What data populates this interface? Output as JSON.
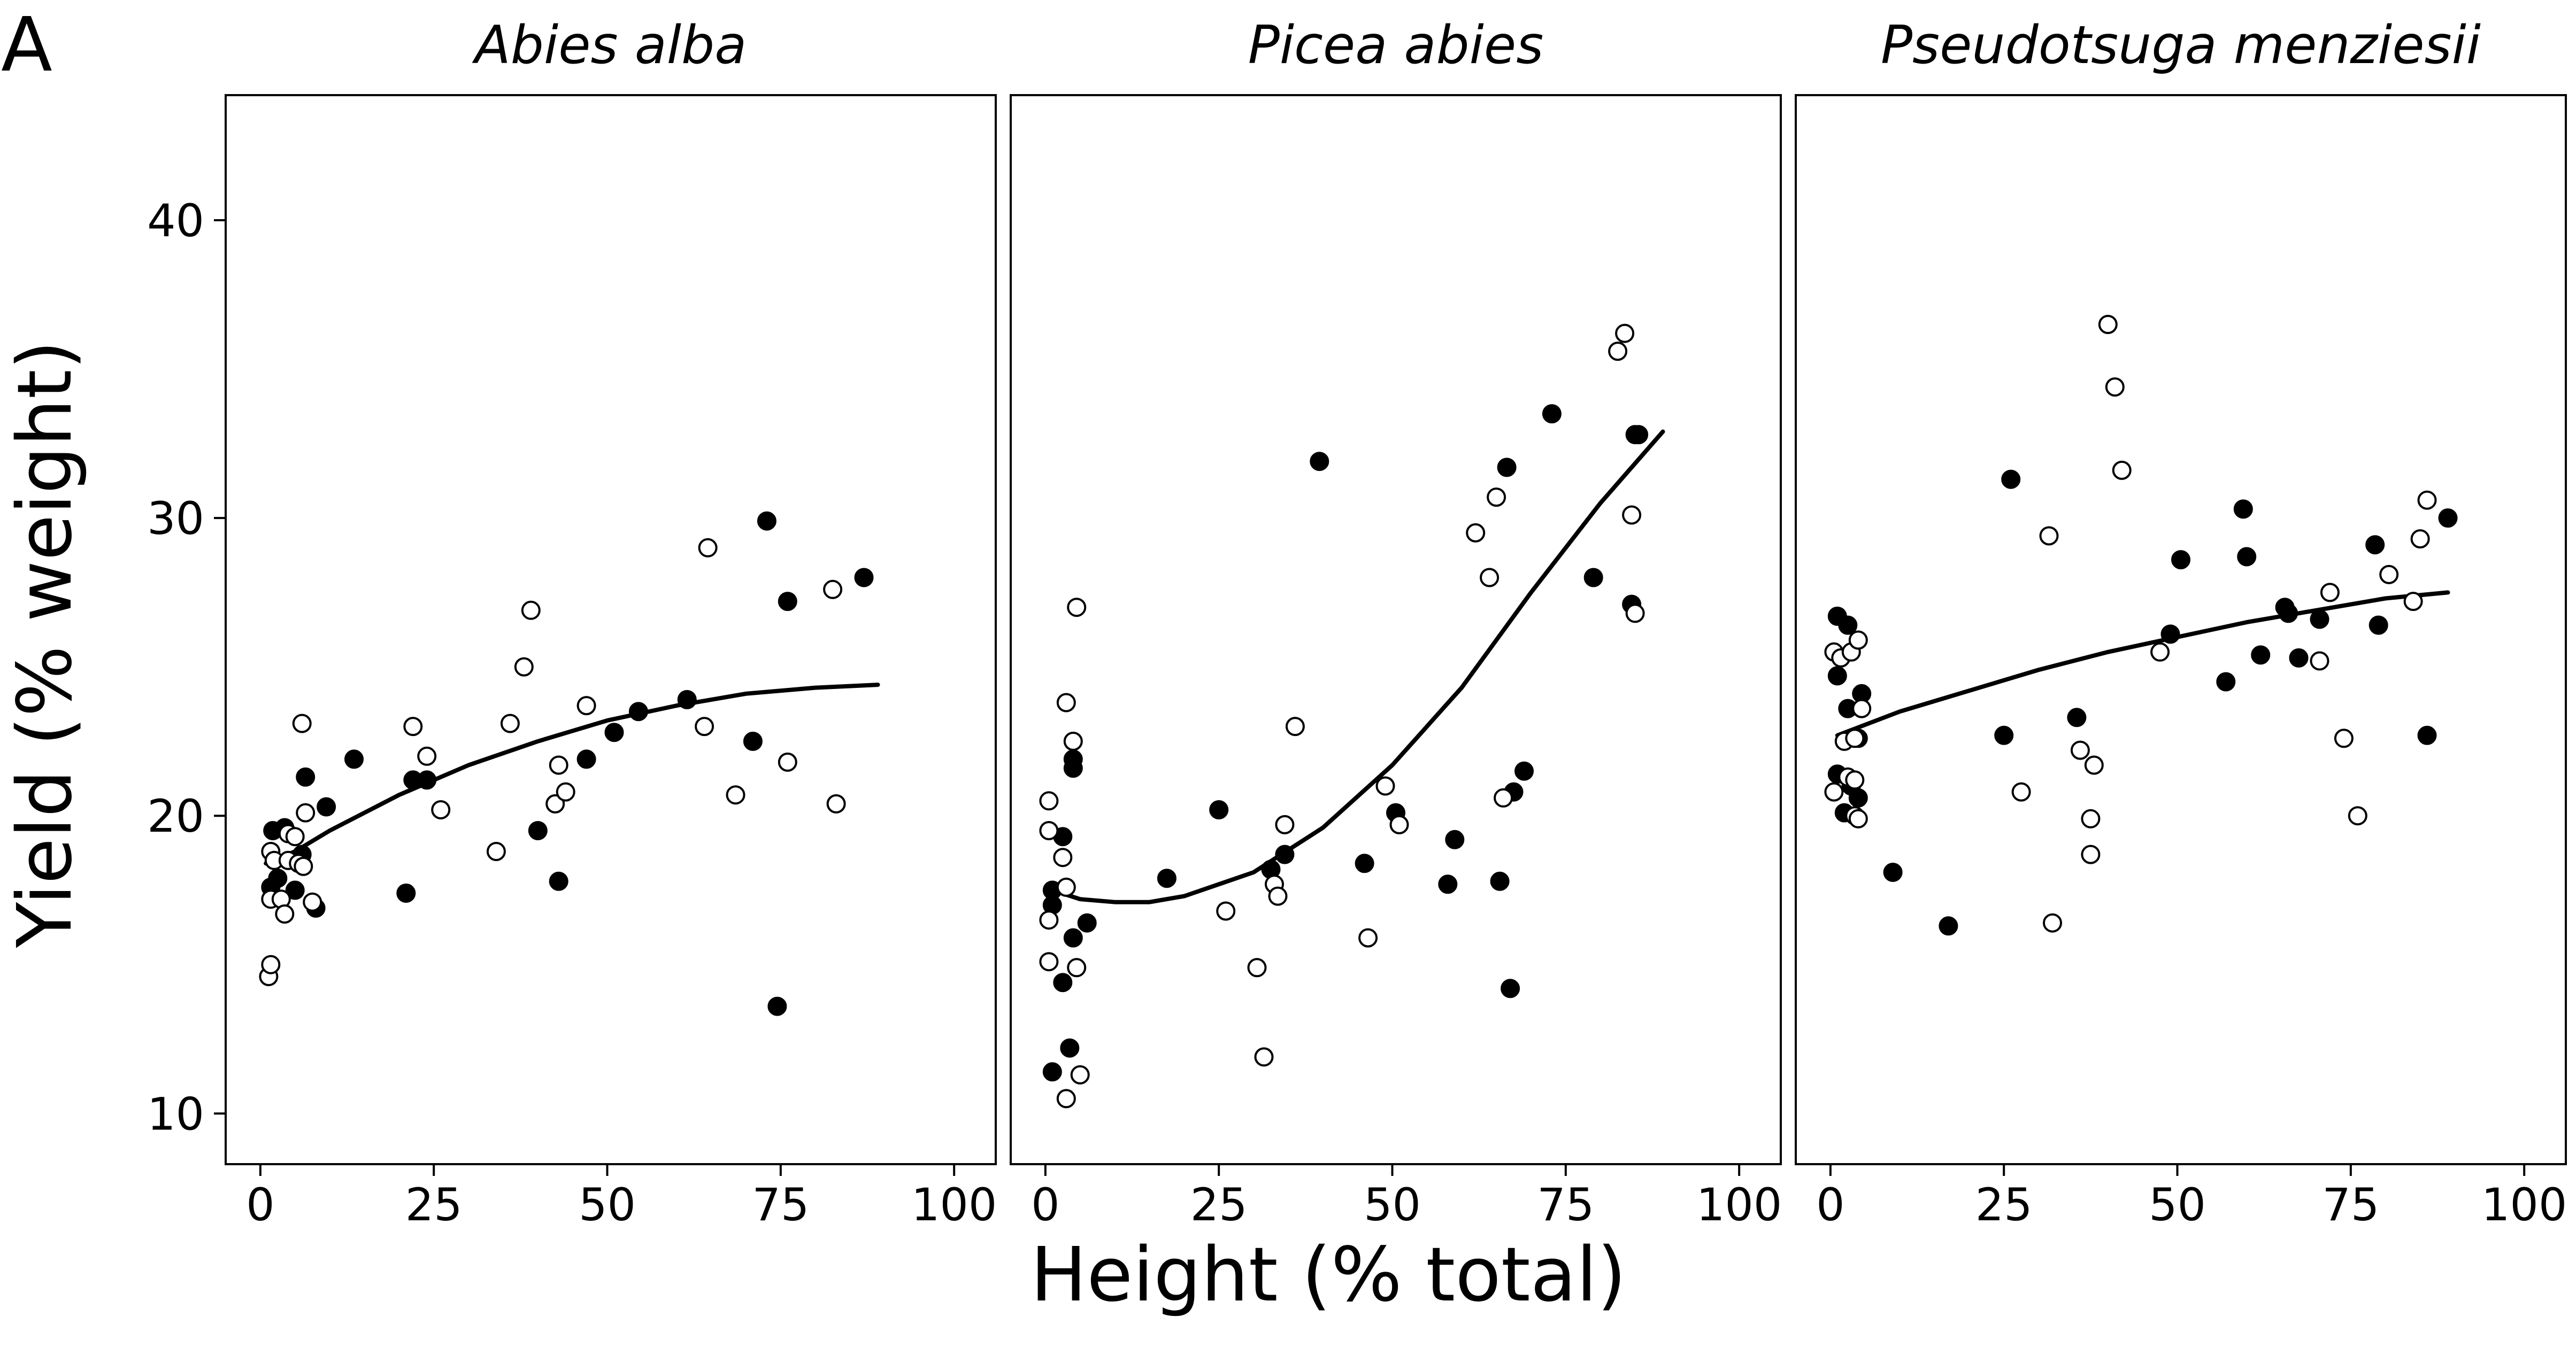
{
  "figure": {
    "panel_label": "A",
    "xlabel": "Height (% total)",
    "ylabel": "Yield (% weight)"
  },
  "chart_data": [
    {
      "type": "scatter",
      "title": "Abies alba",
      "xlim": [
        -5,
        106
      ],
      "ylim": [
        8.3,
        44.2
      ],
      "xticks": [
        0,
        25,
        50,
        75,
        100
      ],
      "yticks": [
        10,
        20,
        30,
        40
      ],
      "xtick_labels": [
        "0",
        "25",
        "50",
        "75",
        "100"
      ],
      "ytick_labels": [
        "10",
        "20",
        "30",
        "40"
      ],
      "marker_styles": {
        "filled": "#000000",
        "open": "#ffffff"
      },
      "series": [
        {
          "style": "filled",
          "points": [
            [
              1.5,
              17.6
            ],
            [
              2.5,
              17.9
            ],
            [
              1.8,
              19.5
            ],
            [
              3.5,
              19.6
            ],
            [
              5,
              17.5
            ],
            [
              6,
              18.7
            ],
            [
              6.5,
              21.3
            ],
            [
              8,
              16.9
            ],
            [
              9.5,
              20.3
            ],
            [
              13.5,
              21.9
            ],
            [
              21,
              17.4
            ],
            [
              22,
              21.2
            ],
            [
              24,
              21.2
            ],
            [
              40,
              19.5
            ],
            [
              43,
              17.8
            ],
            [
              47,
              21.9
            ],
            [
              51,
              22.8
            ],
            [
              54.5,
              23.5
            ],
            [
              61.5,
              23.9
            ],
            [
              71,
              22.5
            ],
            [
              73,
              29.9
            ],
            [
              74.5,
              13.6
            ],
            [
              76,
              27.2
            ],
            [
              87,
              28.0
            ]
          ]
        },
        {
          "style": "open",
          "points": [
            [
              1.2,
              14.6
            ],
            [
              1.5,
              15.0
            ],
            [
              1.5,
              17.2
            ],
            [
              1.5,
              18.8
            ],
            [
              2,
              18.5
            ],
            [
              3,
              17.2
            ],
            [
              3.5,
              16.7
            ],
            [
              4,
              18.5
            ],
            [
              4,
              19.4
            ],
            [
              5,
              19.3
            ],
            [
              5.5,
              18.4
            ],
            [
              6.2,
              18.3
            ],
            [
              6.5,
              20.1
            ],
            [
              6,
              23.1
            ],
            [
              7.5,
              17.1
            ],
            [
              22,
              23.0
            ],
            [
              24,
              22.0
            ],
            [
              26,
              20.2
            ],
            [
              34,
              18.8
            ],
            [
              36,
              23.1
            ],
            [
              38,
              25.0
            ],
            [
              39,
              26.9
            ],
            [
              42.5,
              20.4
            ],
            [
              43,
              21.7
            ],
            [
              44,
              20.8
            ],
            [
              47,
              23.7
            ],
            [
              64,
              23.0
            ],
            [
              64.5,
              29.0
            ],
            [
              68.5,
              20.7
            ],
            [
              76,
              21.8
            ],
            [
              82.5,
              27.6
            ],
            [
              83,
              20.4
            ]
          ]
        }
      ],
      "fit": [
        [
          0.8,
          18.4
        ],
        [
          5,
          18.8
        ],
        [
          10,
          19.5
        ],
        [
          20,
          20.7
        ],
        [
          30,
          21.7
        ],
        [
          40,
          22.5
        ],
        [
          50,
          23.2
        ],
        [
          60,
          23.7
        ],
        [
          70,
          24.1
        ],
        [
          80,
          24.3
        ],
        [
          89,
          24.4
        ]
      ]
    },
    {
      "type": "scatter",
      "title": "Picea abies",
      "xlim": [
        -5,
        106
      ],
      "ylim": [
        8.3,
        44.2
      ],
      "xticks": [
        0,
        25,
        50,
        75,
        100
      ],
      "yticks": [
        10,
        20,
        30,
        40
      ],
      "xtick_labels": [
        "0",
        "25",
        "50",
        "75",
        "100"
      ],
      "ytick_labels": [
        "10",
        "20",
        "30",
        "40"
      ],
      "marker_styles": {
        "filled": "#000000",
        "open": "#ffffff"
      },
      "series": [
        {
          "style": "filled",
          "points": [
            [
              1,
              17.5
            ],
            [
              1,
              17.0
            ],
            [
              1,
              11.4
            ],
            [
              2.5,
              19.3
            ],
            [
              2.5,
              14.4
            ],
            [
              3.5,
              12.2
            ],
            [
              4,
              21.6
            ],
            [
              4,
              21.9
            ],
            [
              4,
              15.9
            ],
            [
              6,
              16.4
            ],
            [
              17.5,
              17.9
            ],
            [
              25,
              20.2
            ],
            [
              32.5,
              18.2
            ],
            [
              34.5,
              18.7
            ],
            [
              39.5,
              31.9
            ],
            [
              46,
              18.4
            ],
            [
              50.5,
              20.1
            ],
            [
              58,
              17.7
            ],
            [
              59,
              19.2
            ],
            [
              65.5,
              17.8
            ],
            [
              66.5,
              31.7
            ],
            [
              67,
              14.2
            ],
            [
              67.5,
              20.8
            ],
            [
              69,
              21.5
            ],
            [
              73,
              33.5
            ],
            [
              79,
              28.0
            ],
            [
              84.5,
              27.1
            ],
            [
              85,
              32.8
            ],
            [
              85.5,
              32.8
            ]
          ]
        },
        {
          "style": "open",
          "points": [
            [
              0.5,
              20.5
            ],
            [
              0.5,
              19.5
            ],
            [
              0.5,
              16.5
            ],
            [
              0.5,
              15.1
            ],
            [
              2.5,
              18.6
            ],
            [
              3,
              17.6
            ],
            [
              3,
              10.5
            ],
            [
              3,
              23.8
            ],
            [
              4,
              22.5
            ],
            [
              4.5,
              27.0
            ],
            [
              4.5,
              14.9
            ],
            [
              5,
              11.3
            ],
            [
              26,
              16.8
            ],
            [
              30.5,
              14.9
            ],
            [
              31.5,
              11.9
            ],
            [
              33,
              17.7
            ],
            [
              33.5,
              17.3
            ],
            [
              34.5,
              19.7
            ],
            [
              36,
              23.0
            ],
            [
              46.5,
              15.9
            ],
            [
              49,
              21.0
            ],
            [
              51,
              19.7
            ],
            [
              62,
              29.5
            ],
            [
              64,
              28.0
            ],
            [
              65,
              30.7
            ],
            [
              66,
              20.6
            ],
            [
              82.5,
              35.6
            ],
            [
              83.5,
              36.2
            ],
            [
              84.5,
              30.1
            ],
            [
              85,
              26.8
            ]
          ]
        }
      ],
      "fit": [
        [
          1,
          17.5
        ],
        [
          5,
          17.2
        ],
        [
          10,
          17.1
        ],
        [
          15,
          17.1
        ],
        [
          20,
          17.3
        ],
        [
          30,
          18.1
        ],
        [
          40,
          19.6
        ],
        [
          50,
          21.7
        ],
        [
          60,
          24.3
        ],
        [
          70,
          27.5
        ],
        [
          80,
          30.5
        ],
        [
          89,
          32.9
        ]
      ]
    },
    {
      "type": "scatter",
      "title": "Pseudotsuga menziesii",
      "xlim": [
        -5,
        106
      ],
      "ylim": [
        8.3,
        44.2
      ],
      "xticks": [
        0,
        25,
        50,
        75,
        100
      ],
      "yticks": [
        10,
        20,
        30,
        40
      ],
      "xtick_labels": [
        "0",
        "25",
        "50",
        "75",
        "100"
      ],
      "ytick_labels": [
        "10",
        "20",
        "30",
        "40"
      ],
      "marker_styles": {
        "filled": "#000000",
        "open": "#ffffff"
      },
      "series": [
        {
          "style": "filled",
          "points": [
            [
              1,
              26.7
            ],
            [
              1,
              24.7
            ],
            [
              1,
              21.4
            ],
            [
              2,
              20.1
            ],
            [
              2.5,
              23.6
            ],
            [
              2.5,
              26.4
            ],
            [
              3,
              21.0
            ],
            [
              4,
              20.6
            ],
            [
              4,
              22.6
            ],
            [
              4.5,
              24.1
            ],
            [
              9,
              18.1
            ],
            [
              17,
              16.3
            ],
            [
              25,
              22.7
            ],
            [
              26,
              31.3
            ],
            [
              35.5,
              23.3
            ],
            [
              49,
              26.1
            ],
            [
              50.5,
              28.6
            ],
            [
              57,
              24.5
            ],
            [
              59.5,
              30.3
            ],
            [
              60,
              28.7
            ],
            [
              62,
              25.4
            ],
            [
              65.5,
              27.0
            ],
            [
              66,
              26.8
            ],
            [
              67.5,
              25.3
            ],
            [
              70.5,
              26.6
            ],
            [
              78.5,
              29.1
            ],
            [
              79,
              26.4
            ],
            [
              86,
              22.7
            ],
            [
              89,
              30.0
            ]
          ]
        },
        {
          "style": "open",
          "points": [
            [
              0.5,
              25.5
            ],
            [
              0.5,
              20.8
            ],
            [
              1.5,
              25.3
            ],
            [
              2,
              22.5
            ],
            [
              2.5,
              21.3
            ],
            [
              3,
              25.5
            ],
            [
              3.5,
              22.6
            ],
            [
              3.5,
              20.0
            ],
            [
              3.5,
              21.2
            ],
            [
              4,
              19.9
            ],
            [
              4,
              25.9
            ],
            [
              4.5,
              23.6
            ],
            [
              27.5,
              20.8
            ],
            [
              31.5,
              29.4
            ],
            [
              32,
              16.4
            ],
            [
              36,
              22.2
            ],
            [
              37.5,
              18.7
            ],
            [
              37.5,
              19.9
            ],
            [
              38,
              21.7
            ],
            [
              40,
              36.5
            ],
            [
              41,
              34.4
            ],
            [
              42,
              31.6
            ],
            [
              47.5,
              25.5
            ],
            [
              70.5,
              25.2
            ],
            [
              72,
              27.5
            ],
            [
              74,
              22.6
            ],
            [
              76,
              20.0
            ],
            [
              80.5,
              28.1
            ],
            [
              84,
              27.2
            ],
            [
              85,
              29.3
            ],
            [
              86,
              30.6
            ]
          ]
        }
      ],
      "fit": [
        [
          1,
          22.7
        ],
        [
          10,
          23.5
        ],
        [
          20,
          24.2
        ],
        [
          30,
          24.9
        ],
        [
          40,
          25.5
        ],
        [
          50,
          26.0
        ],
        [
          60,
          26.5
        ],
        [
          70,
          26.9
        ],
        [
          80,
          27.3
        ],
        [
          89,
          27.5
        ]
      ]
    }
  ]
}
